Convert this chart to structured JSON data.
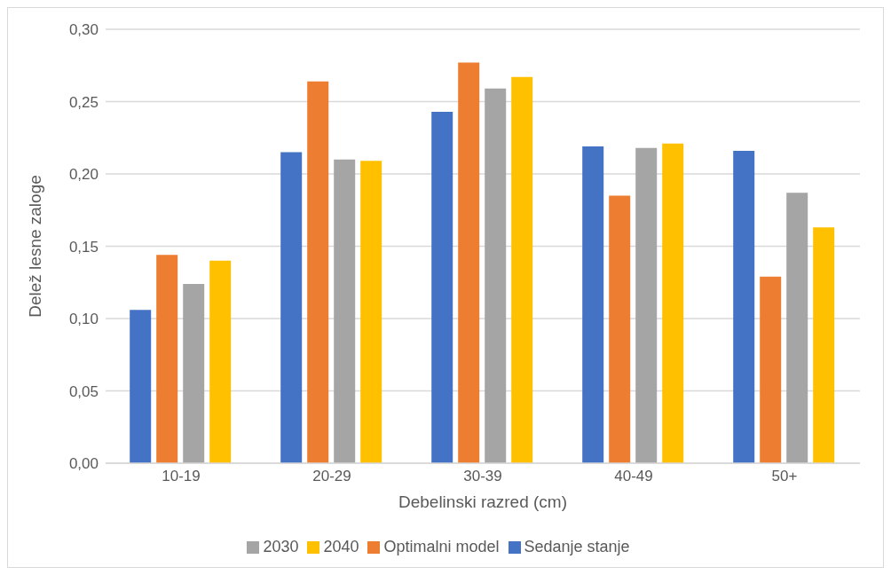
{
  "chart_data": {
    "type": "bar",
    "xlabel": "Debelinski razred (cm)",
    "ylabel": "Delež lesne zaloge",
    "categories": [
      "10-19",
      "20-29",
      "30-39",
      "40-49",
      "50+"
    ],
    "series": [
      {
        "name": "Sedanje stanje",
        "color": "#4472c4",
        "values": [
          0.106,
          0.215,
          0.243,
          0.219,
          0.216
        ]
      },
      {
        "name": "Optimalni model",
        "color": "#ed7d31",
        "values": [
          0.144,
          0.264,
          0.277,
          0.185,
          0.129
        ]
      },
      {
        "name": "2030",
        "color": "#a5a5a5",
        "values": [
          0.124,
          0.21,
          0.259,
          0.218,
          0.187
        ]
      },
      {
        "name": "2040",
        "color": "#ffc000",
        "values": [
          0.14,
          0.209,
          0.267,
          0.221,
          0.163
        ]
      }
    ],
    "ylim": [
      0,
      0.3
    ],
    "yticks": [
      {
        "value": 0,
        "label": "0,00"
      },
      {
        "value": 0.05,
        "label": "0,05"
      },
      {
        "value": 0.1,
        "label": "0,10"
      },
      {
        "value": 0.15,
        "label": "0,15"
      },
      {
        "value": 0.2,
        "label": "0,20"
      },
      {
        "value": 0.25,
        "label": "0,25"
      },
      {
        "value": 0.3,
        "label": "0,30"
      }
    ],
    "grid": "y",
    "legend": "bottom"
  }
}
